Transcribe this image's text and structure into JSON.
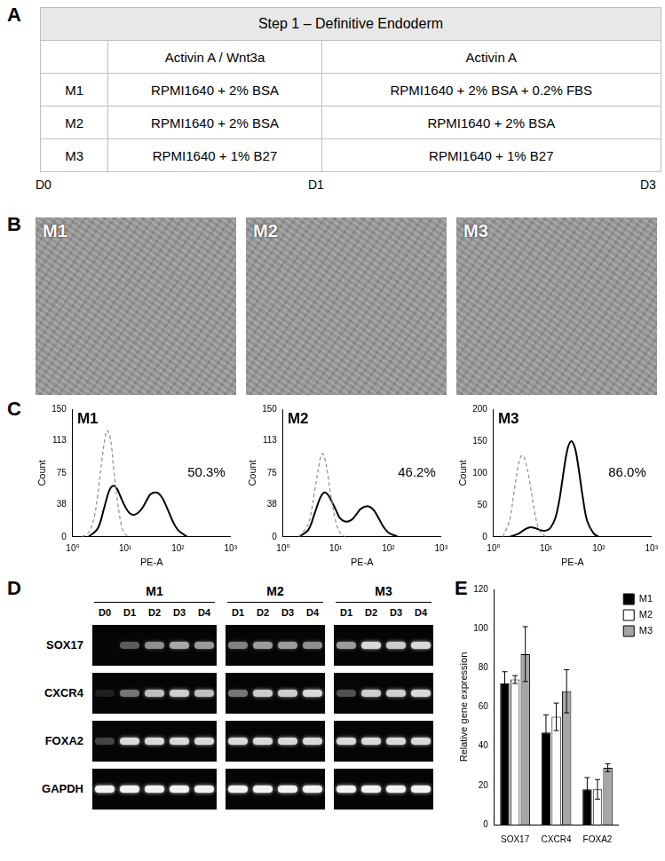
{
  "table": {
    "panel": "A",
    "title": "Step 1 – Definitive Endoderm",
    "header": [
      "",
      "Activin A / Wnt3a",
      "Activin A"
    ],
    "rows": [
      [
        "M1",
        "RPMI1640 + 2% BSA",
        "RPMI1640 + 2% BSA + 0.2% FBS"
      ],
      [
        "M2",
        "RPMI1640 + 2% BSA",
        "RPMI1640 + 2% BSA"
      ],
      [
        "M3",
        "RPMI1640 + 1% B27",
        "RPMI1640 + 1% B27"
      ]
    ],
    "timeline": [
      "D0",
      "D1",
      "D3"
    ]
  },
  "micrographs": {
    "panel": "B",
    "labels": [
      "M1",
      "M2",
      "M3"
    ]
  },
  "gel": {
    "panel": "D",
    "genes": [
      "SOX17",
      "CXCR4",
      "FOXA2",
      "GAPDH"
    ],
    "groups": [
      {
        "name": "M1",
        "lanes": [
          "D0",
          "D1",
          "D2",
          "D3",
          "D4"
        ],
        "intensity": [
          [
            0,
            0.35,
            0.55,
            0.65,
            0.6
          ],
          [
            0.1,
            0.45,
            0.75,
            0.8,
            0.75
          ],
          [
            0.25,
            0.85,
            0.85,
            0.85,
            0.85
          ],
          [
            0.95,
            0.95,
            0.95,
            0.95,
            0.95
          ]
        ]
      },
      {
        "name": "M2",
        "lanes": [
          "D1",
          "D2",
          "D3",
          "D4"
        ],
        "intensity": [
          [
            0.5,
            0.6,
            0.6,
            0.55
          ],
          [
            0.45,
            0.8,
            0.8,
            0.85
          ],
          [
            0.85,
            0.85,
            0.85,
            0.85
          ],
          [
            0.95,
            0.95,
            0.95,
            0.95
          ]
        ]
      },
      {
        "name": "M3",
        "lanes": [
          "D1",
          "D2",
          "D3",
          "D4"
        ],
        "intensity": [
          [
            0.6,
            0.85,
            0.8,
            0.85
          ],
          [
            0.3,
            0.8,
            0.8,
            0.85
          ],
          [
            0.85,
            0.85,
            0.85,
            0.85
          ],
          [
            0.95,
            0.95,
            0.95,
            0.95
          ]
        ]
      }
    ]
  },
  "chart_data": [
    {
      "type": "line",
      "panel": "C",
      "title": "M1",
      "annotations": [
        "50.3%"
      ],
      "x_label": "PE-A",
      "y_label": "Count",
      "log": "x",
      "grid": false,
      "xlim": [
        1,
        1000
      ],
      "xticks": [
        {
          "value": 1,
          "label": "10⁰"
        },
        {
          "value": 10,
          "label": "10¹"
        },
        {
          "value": 100,
          "label": "10²"
        },
        {
          "value": 1000,
          "label": "10³"
        }
      ],
      "ylim": [
        0,
        150
      ],
      "yticks": [
        0,
        38,
        75,
        113,
        150
      ],
      "series": [
        {
          "color": "#8c8c8c",
          "line_style": "dashed",
          "x": [
            1.5,
            2,
            2.5,
            3,
            3.5,
            4,
            4.5,
            5,
            5.5,
            6,
            7,
            8,
            9,
            10,
            12
          ],
          "values": [
            0,
            5,
            20,
            50,
            85,
            112,
            125,
            120,
            105,
            80,
            45,
            20,
            8,
            3,
            0
          ]
        },
        {
          "color": "#000000",
          "line_style": "solid",
          "x": [
            2,
            3,
            4,
            5,
            6,
            7,
            8,
            10,
            12,
            15,
            20,
            25,
            30,
            40,
            50,
            60,
            80,
            100,
            150
          ],
          "values": [
            0,
            10,
            35,
            55,
            60,
            56,
            48,
            35,
            28,
            26,
            32,
            42,
            50,
            52,
            46,
            36,
            18,
            8,
            0
          ]
        }
      ]
    },
    {
      "type": "line",
      "title": "M2",
      "annotations": [
        "46.2%"
      ],
      "x_label": "PE-A",
      "y_label": "Count",
      "log": "x",
      "grid": false,
      "xlim": [
        1,
        1000
      ],
      "xticks": [
        {
          "value": 1,
          "label": "10⁰"
        },
        {
          "value": 10,
          "label": "10¹"
        },
        {
          "value": 100,
          "label": "10²"
        },
        {
          "value": 1000,
          "label": "10³"
        }
      ],
      "ylim": [
        0,
        150
      ],
      "yticks": [
        0,
        38,
        75,
        113,
        150
      ],
      "series": [
        {
          "color": "#8c8c8c",
          "line_style": "dashed",
          "x": [
            2,
            3,
            4,
            5,
            5.5,
            6,
            7,
            8,
            10,
            12,
            15
          ],
          "values": [
            0,
            15,
            55,
            90,
            98,
            95,
            75,
            50,
            18,
            5,
            0
          ]
        },
        {
          "color": "#000000",
          "line_style": "solid",
          "x": [
            2,
            3,
            4,
            5,
            6,
            7,
            8,
            10,
            12,
            15,
            20,
            25,
            30,
            40,
            50,
            60,
            80,
            100,
            150
          ],
          "values": [
            0,
            8,
            28,
            45,
            52,
            50,
            44,
            32,
            22,
            18,
            20,
            27,
            33,
            36,
            33,
            26,
            12,
            5,
            0
          ]
        }
      ]
    },
    {
      "type": "line",
      "title": "M3",
      "annotations": [
        "86.0%"
      ],
      "x_label": "PE-A",
      "y_label": "Count",
      "log": "x",
      "grid": false,
      "xlim": [
        1,
        1000
      ],
      "xticks": [
        {
          "value": 1,
          "label": "10⁰"
        },
        {
          "value": 10,
          "label": "10¹"
        },
        {
          "value": 100,
          "label": "10²"
        },
        {
          "value": 1000,
          "label": "10³"
        }
      ],
      "ylim": [
        0,
        200
      ],
      "yticks": [
        0,
        50,
        100,
        150,
        200
      ],
      "series": [
        {
          "color": "#8c8c8c",
          "line_style": "dashed",
          "x": [
            1.5,
            2,
            2.5,
            3,
            3.5,
            4,
            5,
            6,
            7,
            8,
            10
          ],
          "values": [
            0,
            25,
            75,
            115,
            128,
            120,
            80,
            40,
            15,
            6,
            0
          ]
        },
        {
          "color": "#000000",
          "line_style": "solid",
          "x": [
            2,
            3,
            4,
            5,
            6,
            7,
            8,
            10,
            12,
            15,
            18,
            20,
            25,
            30,
            35,
            40,
            50,
            60,
            80,
            100
          ],
          "values": [
            0,
            5,
            12,
            15,
            14,
            12,
            10,
            10,
            14,
            30,
            60,
            85,
            135,
            150,
            140,
            115,
            60,
            25,
            5,
            0
          ]
        }
      ]
    },
    {
      "type": "bar",
      "panel": "E",
      "y_label": "Relative gene expression",
      "categories": [
        "SOX17",
        "CXCR4",
        "FOXA2"
      ],
      "ylim": [
        0,
        120
      ],
      "yticks": [
        0,
        20,
        40,
        60,
        80,
        100,
        120
      ],
      "legend": "right",
      "grid": false,
      "series": [
        {
          "name": "M1",
          "color": "#000000",
          "values": [
            72,
            47,
            18
          ],
          "errors": [
            6,
            9,
            6
          ]
        },
        {
          "name": "M2",
          "color": "#ffffff",
          "values": [
            74,
            55,
            18
          ],
          "errors": [
            2,
            7,
            5
          ]
        },
        {
          "name": "M3",
          "color": "#a6a6a6",
          "values": [
            87,
            68,
            29
          ],
          "errors": [
            14,
            11,
            2
          ]
        }
      ]
    }
  ]
}
